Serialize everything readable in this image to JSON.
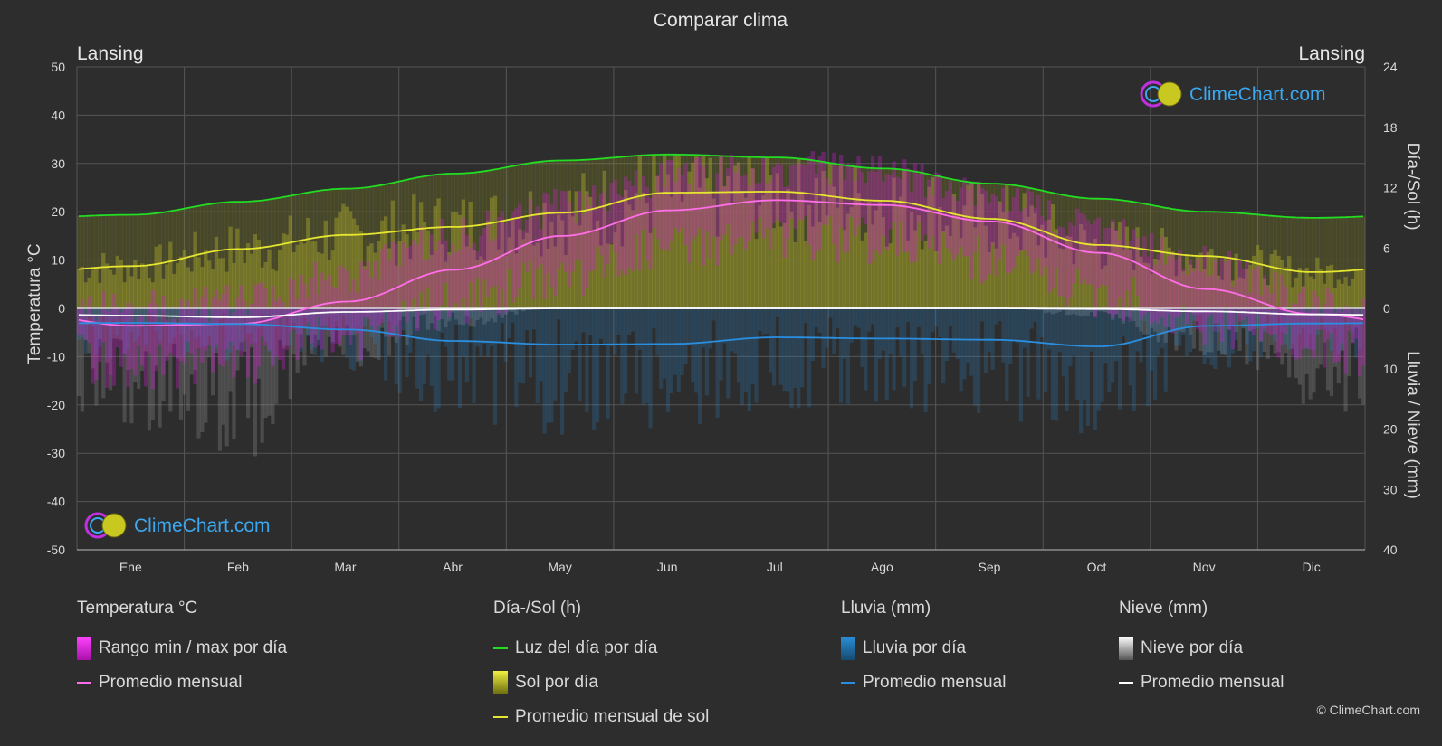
{
  "colors": {
    "background": "#2d2d2d",
    "grid": "#555555",
    "text": "#d9d9d9",
    "temp_range": "#d020d0",
    "temp_avg": "#ff6ee8",
    "daylight": "#22dd22",
    "sunshine": "#a6a62a",
    "sun_avg": "#e6e630",
    "rain": "#2a8fd8",
    "rain_avg": "#2a8fe0",
    "snow": "#9a9a9a",
    "snow_avg": "#ffffff",
    "brand": "#3ba8f0"
  },
  "icons": {
    "brand_logo": "climechart-logo-icon"
  },
  "brand": {
    "name": "ClimeChart.com"
  },
  "copyright": "© ClimeChart.com",
  "chart_data": {
    "type": "area",
    "title": "Comparar clima",
    "location_left": "Lansing",
    "location_right": "Lansing",
    "y_left_label": "Temperatura °C",
    "y_right_top_label": "Día-/Sol (h)",
    "y_right_bottom_label": "Lluvia / Nieve (mm)",
    "y_left_range": [
      -50,
      50
    ],
    "y_left_ticks": [
      "50",
      "40",
      "30",
      "20",
      "10",
      "0",
      "-10",
      "-20",
      "-30",
      "-40",
      "-50"
    ],
    "y_right_top_ticks": [
      "24",
      "18",
      "12",
      "6",
      "0"
    ],
    "y_right_bottom_ticks": [
      "10",
      "20",
      "30",
      "40"
    ],
    "hours_range": [
      0,
      24
    ],
    "precip_range": [
      0,
      40
    ],
    "months": [
      "Ene",
      "Feb",
      "Mar",
      "Abr",
      "May",
      "Jun",
      "Jul",
      "Ago",
      "Sep",
      "Oct",
      "Nov",
      "Dic"
    ],
    "grid": true,
    "series": {
      "temp_avg_monthly": [
        -3.6,
        -3.2,
        1.4,
        8.0,
        15.0,
        20.3,
        22.4,
        21.4,
        18.0,
        11.5,
        4.0,
        -1.2
      ],
      "temp_max_daily_monthly": [
        0,
        1,
        7,
        15,
        21,
        27,
        29,
        28,
        24,
        16,
        9,
        2
      ],
      "temp_min_daily_monthly": [
        -12,
        -11,
        -6,
        1,
        7,
        13,
        15,
        14,
        10,
        3,
        -3,
        -8
      ],
      "daylight_hours": [
        9.3,
        10.6,
        11.9,
        13.4,
        14.7,
        15.3,
        15.0,
        13.9,
        12.4,
        10.9,
        9.6,
        9.0
      ],
      "sunshine_hours": [
        4.2,
        5.9,
        7.3,
        8.1,
        9.5,
        11.5,
        11.6,
        10.7,
        8.9,
        6.3,
        5.2,
        3.6
      ],
      "rain_monthly_mm": [
        2.4,
        2.6,
        3.5,
        5.4,
        6.0,
        5.9,
        4.8,
        5.0,
        5.2,
        6.3,
        2.9,
        2.5
      ],
      "snow_monthly_mm": [
        1.2,
        1.5,
        0.6,
        0.2,
        0.0,
        0.0,
        0.0,
        0.0,
        0.0,
        0.1,
        0.5,
        1.0
      ]
    }
  },
  "legend": {
    "temperature": {
      "title": "Temperatura °C",
      "range": "Rango min / max por día",
      "avg": "Promedio mensual"
    },
    "sun": {
      "title": "Día-/Sol (h)",
      "daylight": "Luz del día por día",
      "sunshine": "Sol por día",
      "sun_avg": "Promedio mensual de sol"
    },
    "rain": {
      "title": "Lluvia (mm)",
      "daily": "Lluvia por día",
      "avg": "Promedio mensual"
    },
    "snow": {
      "title": "Nieve (mm)",
      "daily": "Nieve por día",
      "avg": "Promedio mensual"
    }
  }
}
